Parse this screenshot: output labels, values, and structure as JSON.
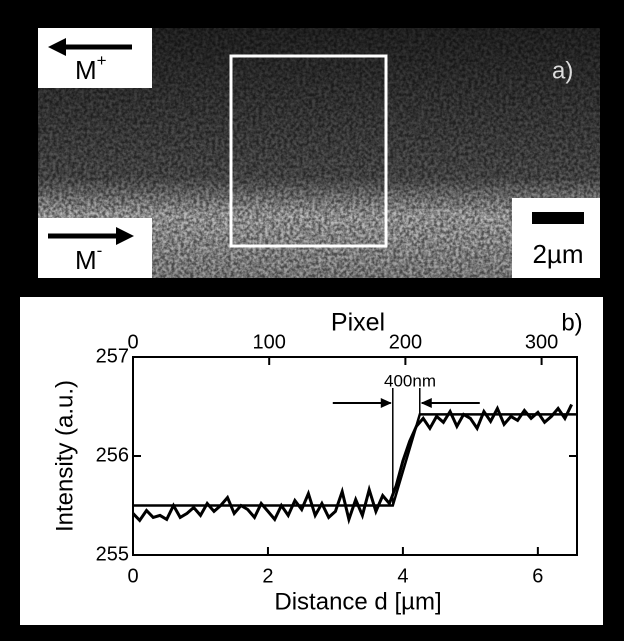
{
  "panel_a": {
    "top_label": {
      "text": "M",
      "sup": "+"
    },
    "bottom_label": {
      "text": "M",
      "sup": "-"
    },
    "panel_label": "a)",
    "scale_label": "2µm"
  },
  "chart_data": {
    "type": "line",
    "panel_label": "b)",
    "annotation": "400nm",
    "xlabel": "Distance d [µm]",
    "ylabel": "Intensity (a.u.)",
    "x2label": "Pixel",
    "xlim": [
      0,
      6.58
    ],
    "xticks": [
      0,
      2,
      4,
      6
    ],
    "x2lim": [
      0,
      326
    ],
    "x2ticks": [
      0,
      100,
      200,
      300
    ],
    "ylim": [
      255,
      257
    ],
    "yticks": [
      255,
      256,
      257
    ],
    "series": [
      {
        "color": "#000000",
        "x": [
          0,
          0.1,
          0.2,
          0.3,
          0.4,
          0.5,
          0.6,
          0.7,
          0.8,
          0.9,
          1,
          1.1,
          1.2,
          1.3,
          1.4,
          1.5,
          1.6,
          1.7,
          1.8,
          1.9,
          2,
          2.1,
          2.2,
          2.3,
          2.4,
          2.5,
          2.6,
          2.7,
          2.8,
          2.9,
          3,
          3.1,
          3.2,
          3.3,
          3.4,
          3.5,
          3.6,
          3.7,
          3.8,
          3.9,
          4,
          4.1,
          4.2,
          4.3,
          4.4,
          4.5,
          4.6,
          4.7,
          4.8,
          4.9,
          5,
          5.1,
          5.2,
          5.3,
          5.4,
          5.5,
          5.6,
          5.7,
          5.8,
          5.9,
          6,
          6.1,
          6.2,
          6.3,
          6.4,
          6.5
        ],
        "values": [
          255.42,
          255.35,
          255.45,
          255.38,
          255.4,
          255.36,
          255.5,
          255.38,
          255.42,
          255.48,
          255.4,
          255.52,
          255.44,
          255.5,
          255.58,
          255.42,
          255.5,
          255.46,
          255.38,
          255.52,
          255.44,
          255.36,
          255.5,
          255.4,
          255.55,
          255.46,
          255.62,
          255.4,
          255.52,
          255.38,
          255.44,
          255.64,
          255.36,
          255.56,
          255.4,
          255.66,
          255.44,
          255.6,
          255.52,
          255.7,
          255.95,
          256.15,
          256.3,
          256.38,
          256.28,
          256.4,
          256.34,
          256.45,
          256.3,
          256.42,
          256.38,
          256.28,
          256.45,
          256.35,
          256.48,
          256.32,
          256.4,
          256.36,
          256.46,
          256.38,
          256.44,
          256.34,
          256.4,
          256.48,
          256.38,
          256.52
        ]
      },
      {
        "color": "#000000",
        "x": [
          0,
          3.85,
          4.25,
          6.58
        ],
        "values": [
          255.5,
          255.5,
          256.42,
          256.42
        ]
      }
    ]
  }
}
